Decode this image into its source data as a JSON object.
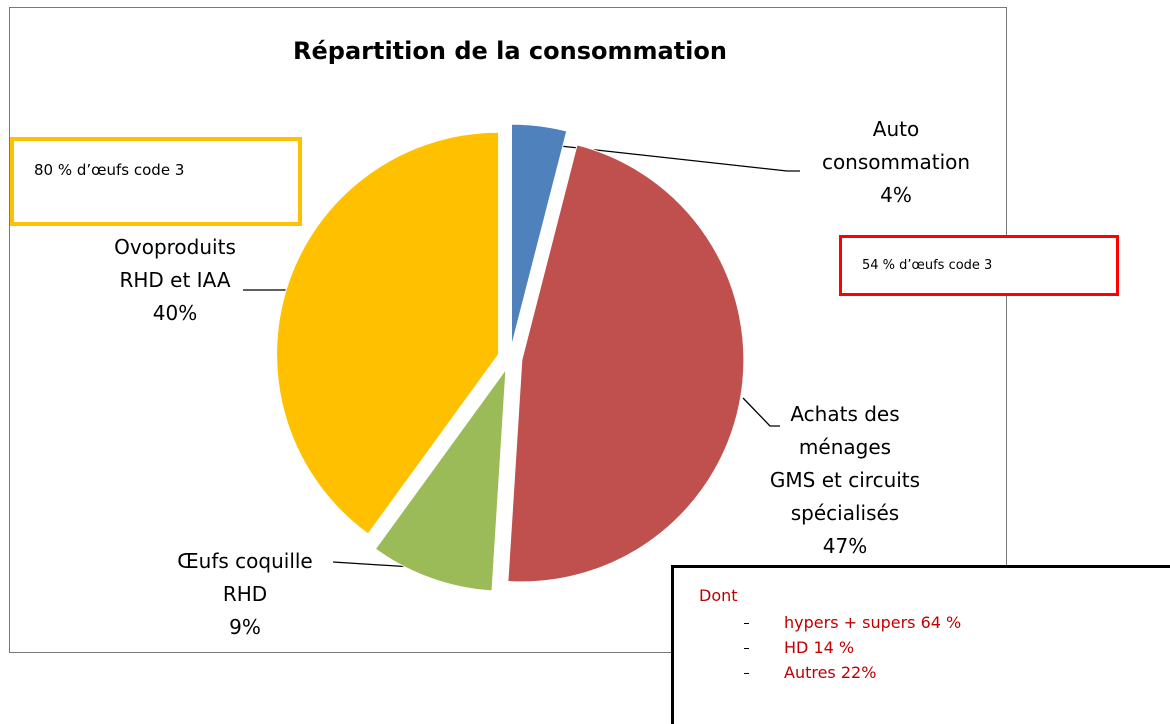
{
  "chart_data": {
    "type": "pie",
    "title": "Répartition de la consommation",
    "categories": [
      "Auto\nconsommation",
      "Achats des\nménages\nGMS et circuits\nspécialisés",
      "Œufs coquille\nRHD",
      "Ovoproduits\nRHD et IAA"
    ],
    "values": [
      4,
      47,
      9,
      40
    ],
    "value_labels": [
      "4%",
      "47%",
      "9%",
      "40%"
    ],
    "colors": [
      "#4f81bd",
      "#c0504d",
      "#9bbb59",
      "#ffc000"
    ],
    "annotations": [
      "80 % d’œufs code 3",
      "54 % d’œufs code 3"
    ],
    "breakdown": {
      "title": "Dont",
      "items": [
        "hypers + supers 64 %",
        "HD 14 %",
        "Autres 22%"
      ]
    }
  }
}
